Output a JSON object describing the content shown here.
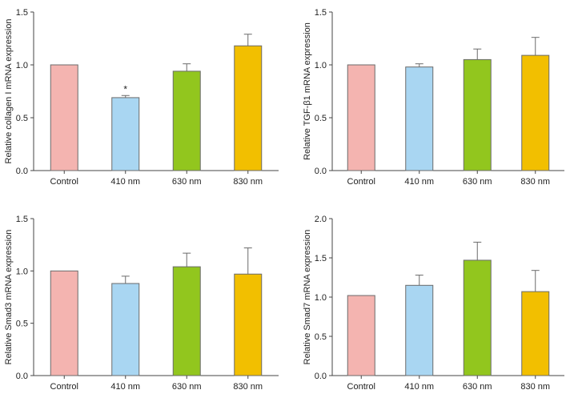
{
  "chart_data": [
    {
      "type": "bar",
      "ylabel": "Relative collagen I mRNA expression",
      "categories": [
        "Control",
        "410 nm",
        "630 nm",
        "830 nm"
      ],
      "values": [
        1.0,
        0.69,
        0.94,
        1.18
      ],
      "errors": [
        0,
        0.02,
        0.07,
        0.11
      ],
      "annotations": [
        "",
        "*",
        "",
        ""
      ],
      "ylim": [
        0,
        1.5
      ],
      "yticks": [
        "0.0",
        "0.5",
        "1.0",
        "1.5"
      ],
      "grid": false
    },
    {
      "type": "bar",
      "ylabel": "Relative TGF-β1 mRNA expression",
      "categories": [
        "Control",
        "410 nm",
        "630 nm",
        "830 nm"
      ],
      "values": [
        1.0,
        0.98,
        1.05,
        1.09
      ],
      "errors": [
        0,
        0.03,
        0.1,
        0.17
      ],
      "annotations": [
        "",
        "",
        "",
        ""
      ],
      "ylim": [
        0,
        1.5
      ],
      "yticks": [
        "0.0",
        "0.5",
        "1.0",
        "1.5"
      ],
      "grid": false
    },
    {
      "type": "bar",
      "ylabel": "Relative Smad3 mRNA expression",
      "categories": [
        "Control",
        "410 nm",
        "630 nm",
        "830 nm"
      ],
      "values": [
        1.0,
        0.88,
        1.04,
        0.97
      ],
      "errors": [
        0,
        0.07,
        0.13,
        0.25
      ],
      "annotations": [
        "",
        "",
        "",
        ""
      ],
      "ylim": [
        0,
        1.5
      ],
      "yticks": [
        "0.0",
        "0.5",
        "1.0",
        "1.5"
      ],
      "grid": false
    },
    {
      "type": "bar",
      "ylabel": "Relative Smad7 mRNA expression",
      "categories": [
        "Control",
        "410 nm",
        "630 nm",
        "830 nm"
      ],
      "values": [
        1.02,
        1.15,
        1.47,
        1.07
      ],
      "errors": [
        0,
        0.13,
        0.23,
        0.27
      ],
      "annotations": [
        "",
        "",
        "",
        ""
      ],
      "ylim": [
        0,
        2.0
      ],
      "yticks": [
        "0.0",
        "0.5",
        "1.0",
        "1.5",
        "2.0"
      ],
      "grid": false
    }
  ],
  "colors": {
    "bars": [
      "#f4b4b0",
      "#a9d6f2",
      "#92c61e",
      "#f2bf00"
    ],
    "outline": "#6b6b6b",
    "axis": "#444444",
    "text": "#222222"
  }
}
